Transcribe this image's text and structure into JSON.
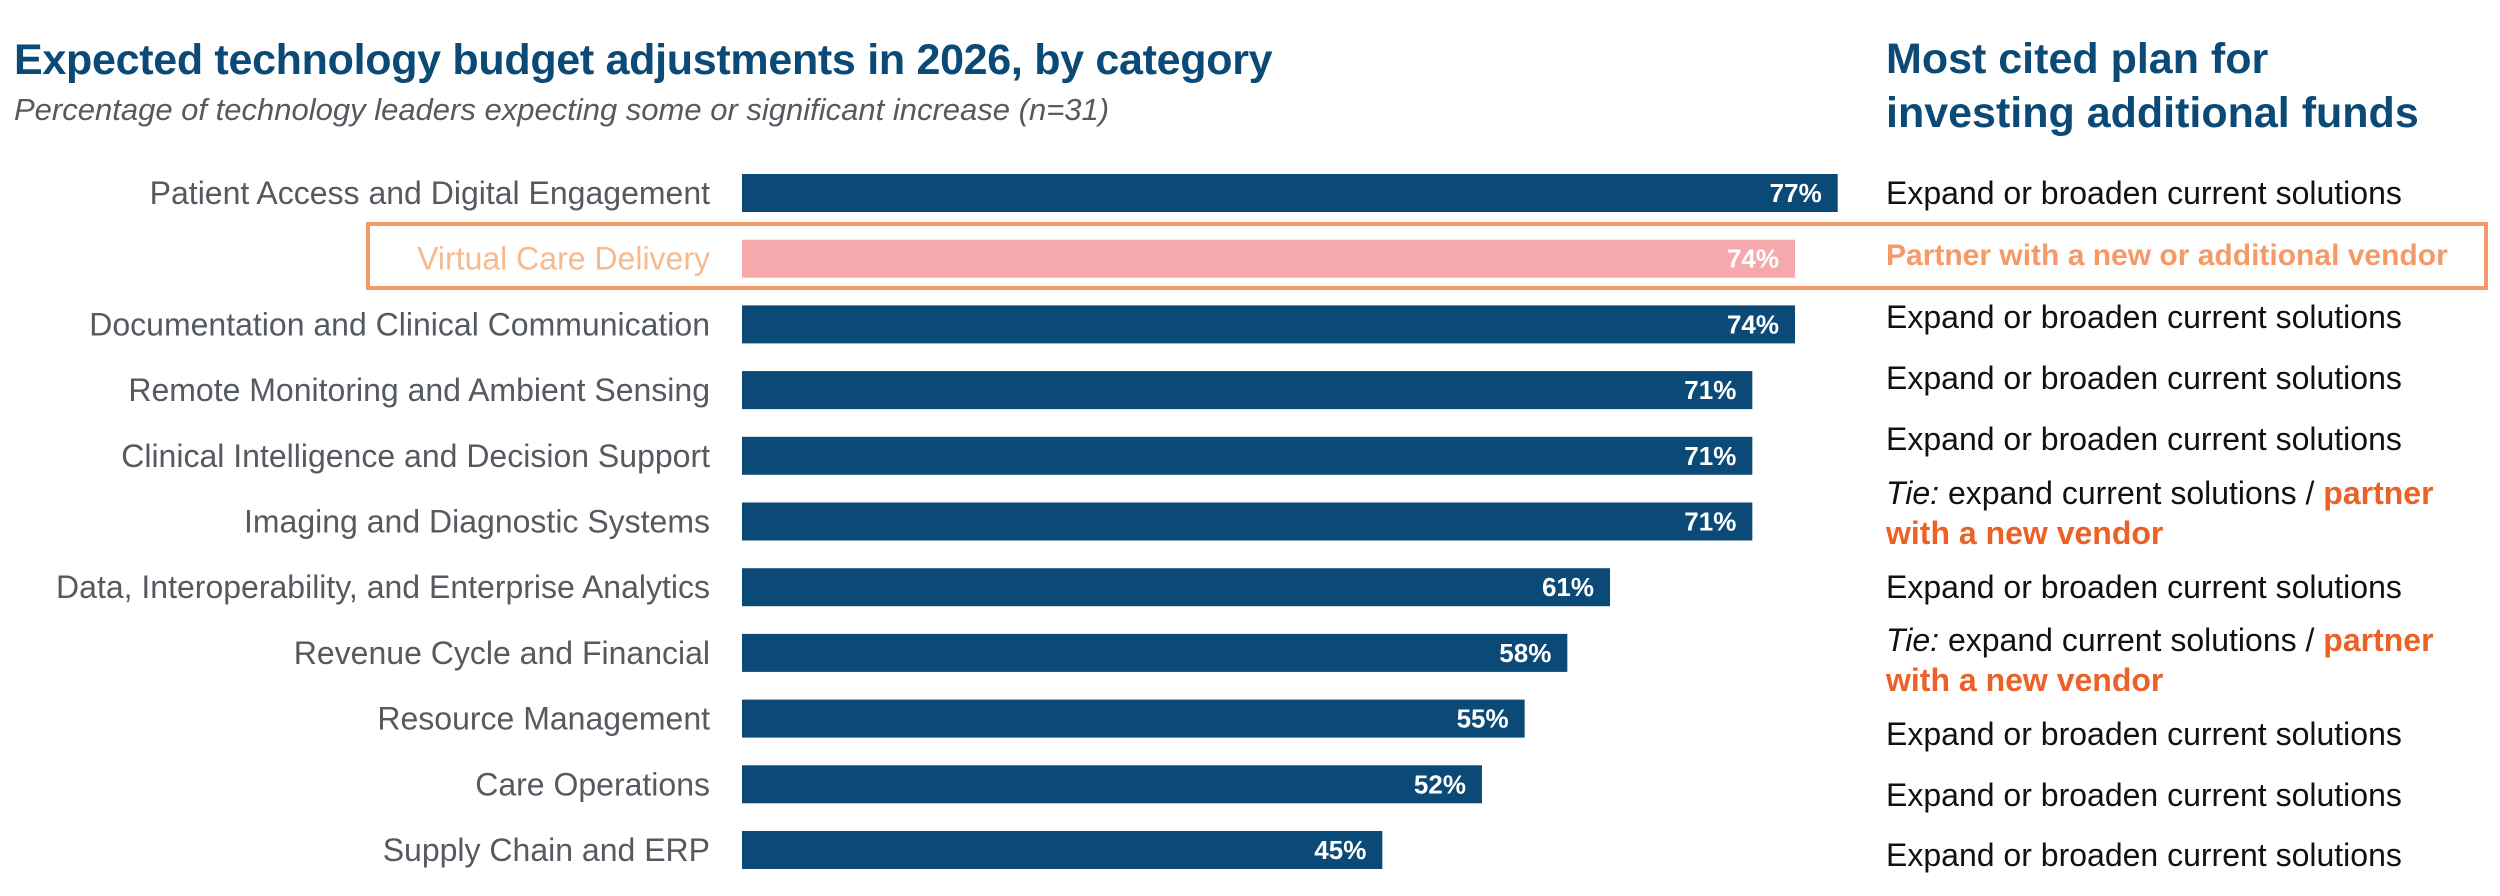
{
  "chart_data": {
    "type": "bar",
    "orientation": "horizontal",
    "title": "Expected technology budget adjustments in 2026, by category",
    "subtitle": "Percentage of technology leaders expecting some or significant increase (n=31)",
    "categories": [
      "Patient Access and Digital Engagement",
      "Virtual Care Delivery",
      "Documentation and Clinical Communication",
      "Remote Monitoring and Ambient Sensing",
      "Clinical Intelligence and Decision Support",
      "Imaging and Diagnostic Systems",
      "Data, Interoperability, and Enterprise Analytics",
      "Revenue Cycle and Financial",
      "Resource Management",
      "Care Operations",
      "Supply Chain and ERP"
    ],
    "values": [
      77,
      74,
      74,
      71,
      71,
      71,
      61,
      58,
      55,
      52,
      45
    ],
    "value_labels": [
      "77%",
      "74%",
      "74%",
      "71%",
      "71%",
      "71%",
      "61%",
      "58%",
      "55%",
      "52%",
      "45%"
    ],
    "unit": "%",
    "xlim": [
      0,
      100
    ],
    "grid": false,
    "legend": "none",
    "highlight_index": 1,
    "colors": {
      "bar": "#0b4a76",
      "bar_highlight": "#f6a9ad",
      "label_highlight": "#f7b98d",
      "box": "#f59a66",
      "accent": "#ec6127"
    }
  },
  "plans": {
    "title_line1": "Most cited plan for",
    "title_line2": "investing additional funds",
    "rows": [
      {
        "text": "Expand or broaden current solutions"
      },
      {
        "text": "Partner with a new or additional vendor"
      },
      {
        "text": "Expand or broaden current solutions"
      },
      {
        "text": "Expand or broaden current solutions"
      },
      {
        "text": "Expand or broaden current solutions"
      },
      {
        "tie": "Tie:",
        "text": " expand current solutions / ",
        "accent_line1": "partner",
        "accent_line2": "with a new vendor"
      },
      {
        "text": "Expand or broaden current solutions"
      },
      {
        "tie": "Tie:",
        "text": " expand current solutions / ",
        "accent_line1": "partner",
        "accent_line2": "with a new vendor"
      },
      {
        "text": "Expand or broaden current solutions"
      },
      {
        "text": "Expand or broaden current solutions"
      },
      {
        "text": "Expand or broaden current solutions"
      }
    ]
  }
}
